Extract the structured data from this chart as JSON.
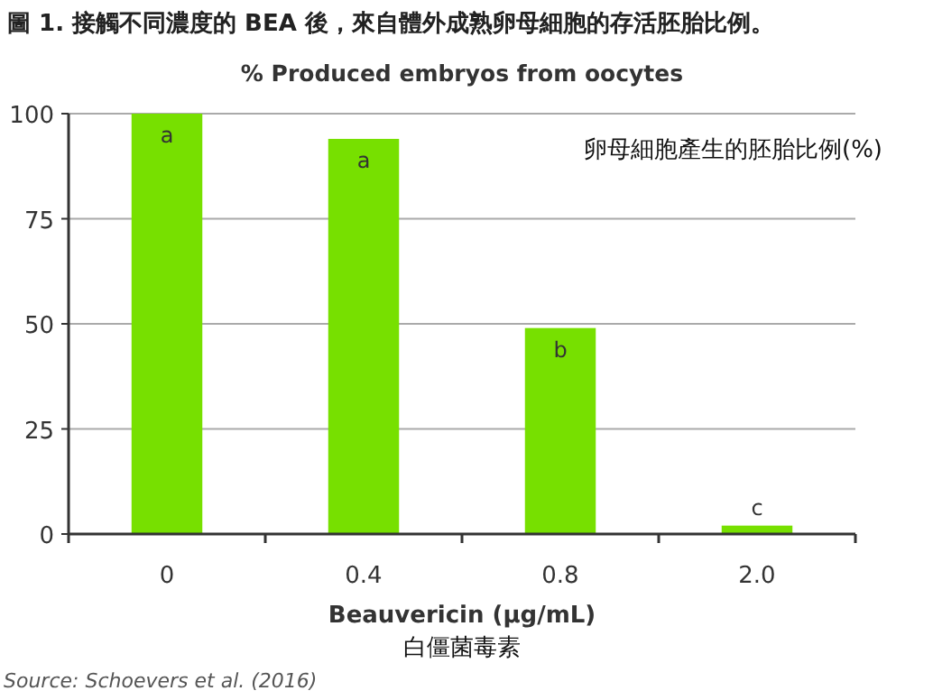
{
  "chart_data": {
    "type": "bar",
    "title": "圖 1. 接觸不同濃度的 BEA 後，來自體外成熟卵母細胞的存活胚胎比例。",
    "subtitle": "% Produced embryos from oocytes",
    "xlabel": "Beauvericin (μg/mL)",
    "categories": [
      "0",
      "0.4",
      "0.8",
      "2.0"
    ],
    "values": [
      100,
      94,
      49,
      2
    ],
    "color": "#77e000",
    "ylim": [
      0,
      100
    ],
    "yticks": [
      0,
      25,
      50,
      75,
      100
    ],
    "grid": "y",
    "annotations": [
      "卵母細胞產生的胚胎比例(%)",
      "白僵菌毒素",
      "Source: Schoevers et al. (2016)",
      {
        "text": "a",
        "x": "0",
        "y": 100
      },
      {
        "text": "a",
        "x": "0.4",
        "y": 94
      },
      {
        "text": "b",
        "x": "0.8",
        "y": 49
      },
      {
        "text": "c",
        "x": "2.0",
        "y": 2
      }
    ]
  }
}
